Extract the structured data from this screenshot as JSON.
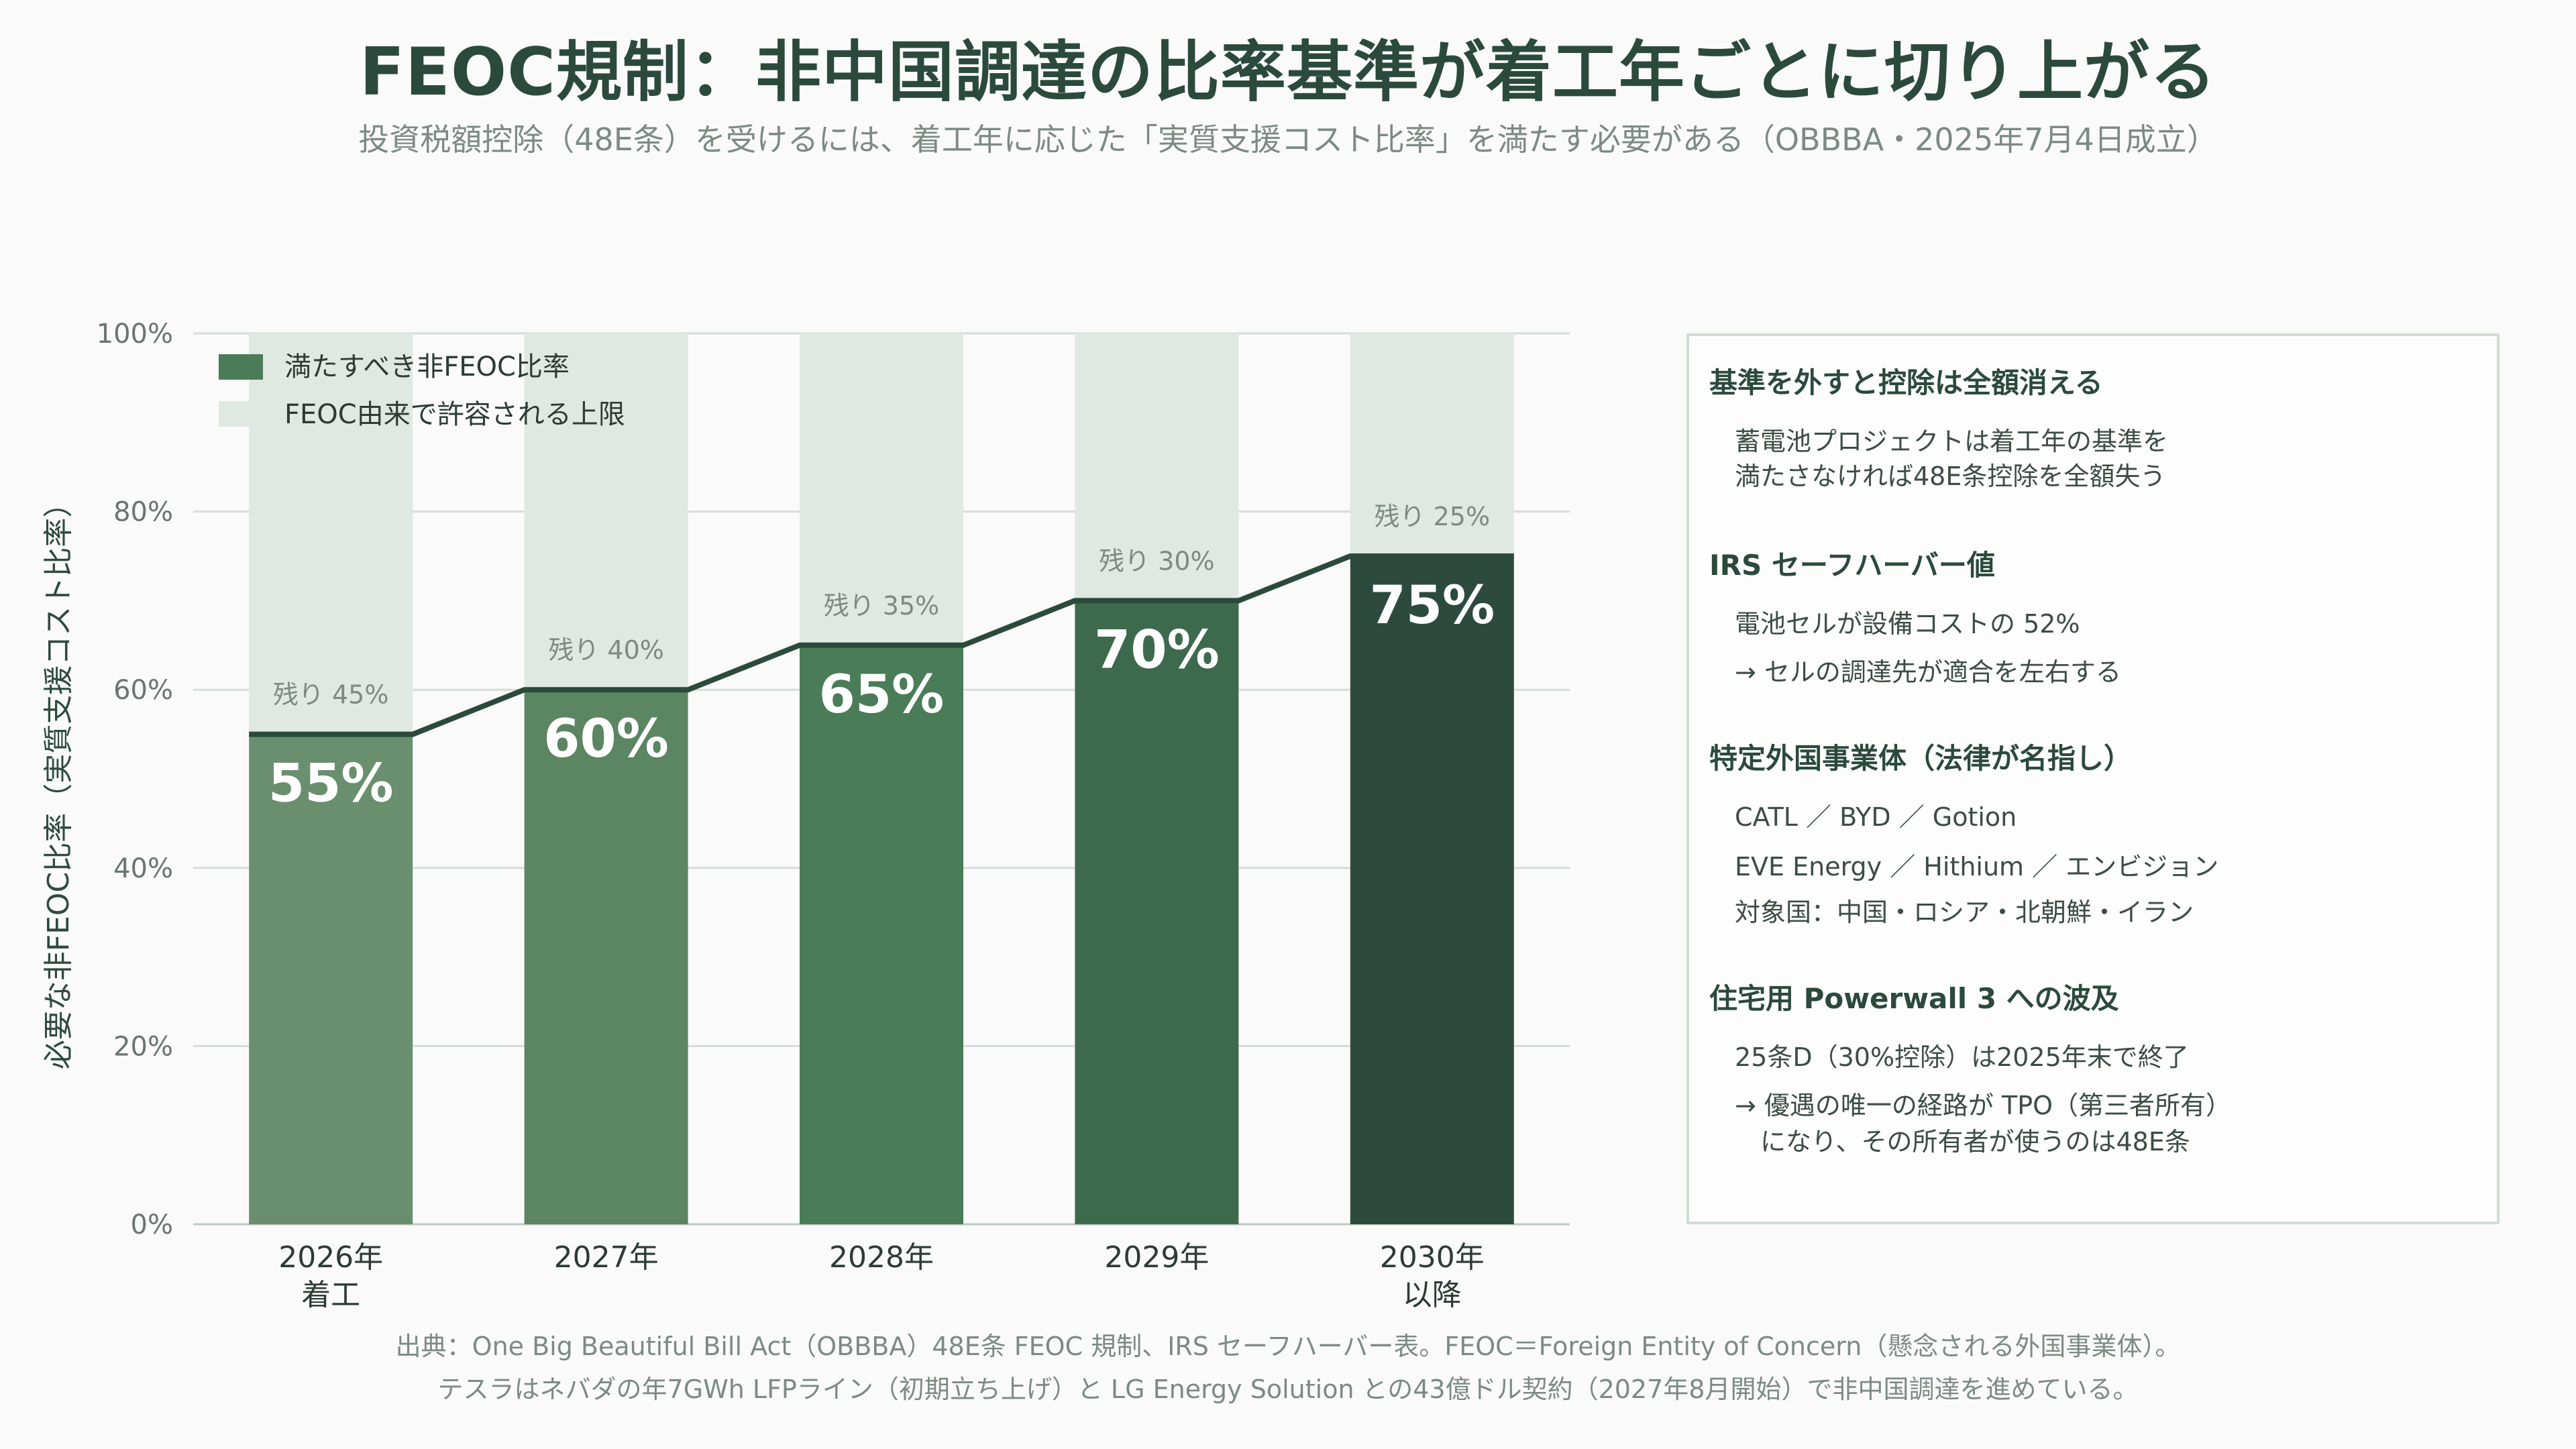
{
  "title": "FEOC規制：非中国調達の比率基準が着工年ごとに切り上がる",
  "subtitle": "投資税額控除（48E条）を受けるには、着工年に応じた「実質支援コスト比率」を満たす必要がある（OBBBA・2025年7月4日成立）",
  "chart_data": {
    "type": "bar",
    "stacked": true,
    "categories": [
      [
        "2026年",
        "着工"
      ],
      [
        "2027年"
      ],
      [
        "2028年"
      ],
      [
        "2029年"
      ],
      [
        "2030年",
        "以降"
      ]
    ],
    "series": [
      {
        "name": "満たすべき非FEOC比率",
        "values": [
          55,
          60,
          65,
          70,
          75
        ],
        "value_labels": [
          "55%",
          "60%",
          "65%",
          "70%",
          "75%"
        ]
      },
      {
        "name": "FEOC由来で許容される上限",
        "values": [
          45,
          40,
          35,
          30,
          25
        ],
        "value_labels": [
          "残り 45%",
          "残り 40%",
          "残り 35%",
          "残り 30%",
          "残り 25%"
        ]
      }
    ],
    "ylabel": "必要な非FEOC比率（実質支援コスト比率）",
    "ylim": [
      0,
      100
    ],
    "yticks": [
      0,
      20,
      40,
      60,
      80,
      100
    ],
    "ytick_labels": [
      "0%",
      "20%",
      "40%",
      "60%",
      "80%",
      "100%"
    ],
    "grid": true,
    "legend_position": "top-left",
    "step_line": true,
    "colors": {
      "bars": [
        "#6a8f6e",
        "#5c8562",
        "#4a7c57",
        "#3d6a4d",
        "#2d4a3e"
      ],
      "remainder": "#dfe8e1",
      "line": "#2b4a3c"
    }
  },
  "panel": {
    "sections": [
      {
        "heading": "基準を外すと控除は全額消える",
        "lines": [
          "蓄電池プロジェクトは着工年の基準を",
          "満たさなければ48E条控除を全額失う"
        ]
      },
      {
        "heading": "IRS セーフハーバー値",
        "lines": [
          "電池セルが設備コストの 52%",
          "→ セルの調達先が適合を左右する"
        ]
      },
      {
        "heading": "特定外国事業体（法律が名指し）",
        "lines": [
          "CATL ／ BYD ／ Gotion",
          "EVE Energy ／ Hithium ／ エンビジョン",
          "対象国：中国・ロシア・北朝鮮・イラン"
        ]
      },
      {
        "heading": "住宅用 Powerwall 3 への波及",
        "lines": [
          "25条D（30%控除）は2025年末で終了",
          "→ 優遇の唯一の経路が TPO（第三者所有）",
          "　になり、その所有者が使うのは48E条"
        ]
      }
    ]
  },
  "footer": {
    "line1": "出典：One Big Beautiful Bill Act（OBBBA）48E条 FEOC 規制、IRS セーフハーバー表。FEOC＝Foreign Entity of Concern（懸念される外国事業体）。",
    "line2": "テスラはネバダの年7GWh LFPライン（初期立ち上げ）と LG Energy Solution との43億ドル契約（2027年8月開始）で非中国調達を進めている。"
  }
}
